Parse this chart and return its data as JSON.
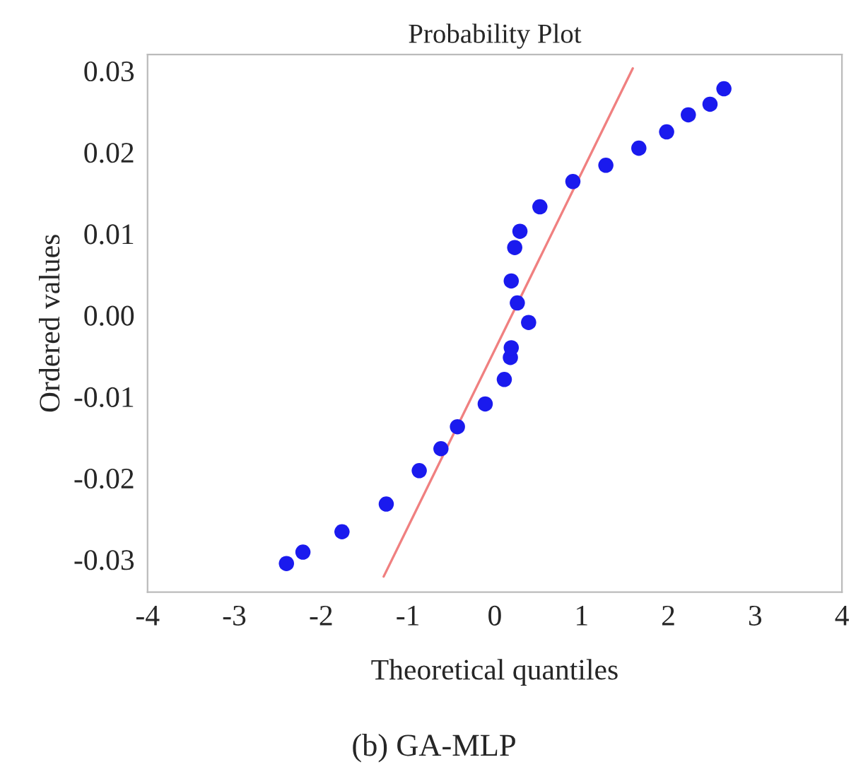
{
  "chart_data": {
    "type": "scatter",
    "title": "Probability Plot",
    "xlabel": "Theoretical quantiles",
    "ylabel": "Ordered values",
    "series": [
      {
        "color": "#1a1aee",
        "marker": "circle",
        "x": [
          -2.4,
          -2.21,
          -1.76,
          -1.25,
          -0.87,
          -0.62,
          -0.43,
          -0.11,
          0.11,
          0.18,
          0.19,
          0.39,
          0.26,
          0.19,
          0.23,
          0.29,
          0.52,
          0.9,
          1.28,
          1.66,
          1.98,
          2.23,
          2.48,
          2.64
        ],
        "values": [
          -0.0305,
          -0.0291,
          -0.0266,
          -0.0232,
          -0.0191,
          -0.0164,
          -0.0137,
          -0.0109,
          -0.0079,
          -0.0052,
          -0.004,
          -0.0009,
          0.0015,
          0.0042,
          0.0083,
          0.0103,
          0.0133,
          0.0164,
          0.0184,
          0.0205,
          0.0225,
          0.0246,
          0.0259,
          0.0278
        ]
      },
      {
        "type": "line",
        "color": "#f08080",
        "line_style": "solid",
        "x": [
          -1.28,
          1.59
        ],
        "values": [
          -0.0321,
          0.0303
        ]
      }
    ],
    "xlim": [
      -4,
      4
    ],
    "xticks": [
      -4,
      -3,
      -2,
      -1,
      0,
      1,
      2,
      3,
      4
    ],
    "ylim": [
      -0.034,
      0.032
    ],
    "yticks": [
      {
        "value": -0.03,
        "label": "-0.03"
      },
      {
        "value": -0.02,
        "label": "-0.02"
      },
      {
        "value": -0.01,
        "label": "-0.01"
      },
      {
        "value": 0.0,
        "label": "0.00"
      },
      {
        "value": 0.01,
        "label": "0.01"
      },
      {
        "value": 0.02,
        "label": "0.02"
      },
      {
        "value": 0.03,
        "label": "0.03"
      }
    ],
    "grid": false,
    "legend": false,
    "annotations": [
      "(b) GA-MLP"
    ]
  }
}
